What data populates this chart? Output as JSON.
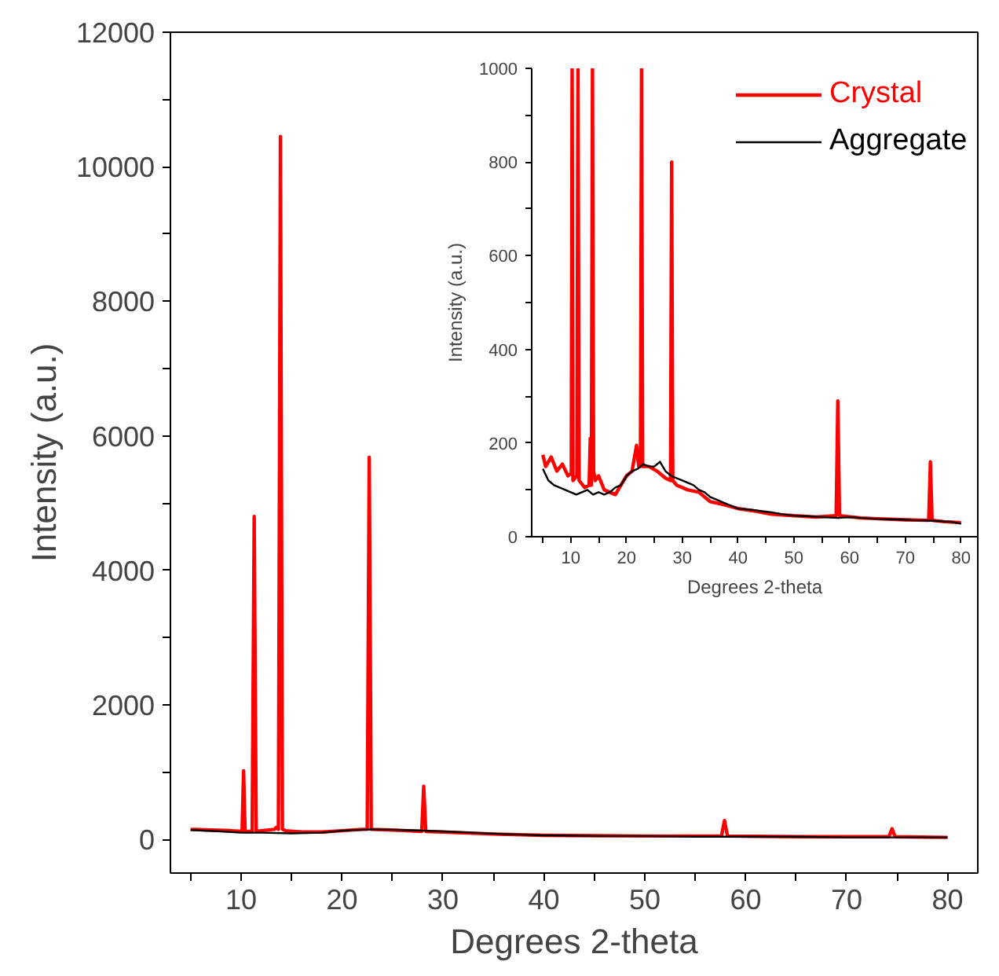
{
  "chart_data": [
    {
      "type": "line",
      "xlabel": "Degrees 2-theta",
      "ylabel": "Intensity (a.u.)",
      "xlim": [
        3,
        83
      ],
      "ylim": [
        -500,
        12000
      ],
      "xticks": [
        {
          "value": 5,
          "label": null
        },
        10,
        {
          "value": 15,
          "label": null
        },
        20,
        {
          "value": 25,
          "label": null
        },
        30,
        {
          "value": 35,
          "label": null
        },
        40,
        {
          "value": 45,
          "label": null
        },
        50,
        {
          "value": 55,
          "label": null
        },
        60,
        {
          "value": 65,
          "label": null
        },
        70,
        {
          "value": 75,
          "label": null
        },
        80
      ],
      "yticks": [
        0,
        {
          "value": 1000,
          "label": null
        },
        2000,
        {
          "value": 3000,
          "label": null
        },
        4000,
        {
          "value": 5000,
          "label": null
        },
        6000,
        {
          "value": 7000,
          "label": null
        },
        8000,
        {
          "value": 9000,
          "label": null
        },
        10000,
        {
          "value": 11000,
          "label": null
        },
        12000
      ],
      "grid": false,
      "legend": false,
      "series": [
        {
          "color": "#ff0000",
          "x": [
            5,
            7,
            9,
            10.1,
            10.25,
            10.4,
            11.1,
            11.3,
            11.5,
            13.3,
            13.5,
            13.7,
            13.9,
            14.1,
            14.4,
            16,
            18,
            20,
            22,
            22.5,
            22.7,
            22.9,
            25,
            27.9,
            28.1,
            28.3,
            30,
            35,
            40,
            50,
            57.6,
            57.9,
            58.2,
            65,
            74.2,
            74.5,
            74.8,
            80
          ],
          "values": [
            150,
            140,
            130,
            120,
            1020,
            120,
            120,
            4800,
            120,
            150,
            180,
            150,
            10450,
            150,
            130,
            110,
            110,
            130,
            150,
            150,
            5680,
            150,
            140,
            120,
            790,
            120,
            110,
            80,
            60,
            50,
            50,
            280,
            50,
            40,
            40,
            160,
            40,
            30
          ]
        },
        {
          "color": "#000000",
          "x": [
            5,
            8,
            10,
            12,
            15,
            18,
            20,
            23,
            26,
            28,
            30,
            33,
            36,
            40,
            45,
            50,
            55,
            60,
            65,
            70,
            75,
            80
          ],
          "values": [
            140,
            120,
            100,
            100,
            90,
            100,
            130,
            150,
            140,
            130,
            120,
            100,
            80,
            60,
            50,
            50,
            40,
            40,
            40,
            30,
            30,
            30
          ]
        }
      ]
    },
    {
      "type": "line",
      "xlabel": "Degrees 2-theta",
      "ylabel": "Intensity (a.u.)",
      "xlim": [
        3,
        83
      ],
      "ylim": [
        0,
        1000
      ],
      "xticks": [
        {
          "value": 5,
          "label": null
        },
        10,
        {
          "value": 15,
          "label": null
        },
        20,
        {
          "value": 25,
          "label": null
        },
        30,
        {
          "value": 35,
          "label": null
        },
        40,
        {
          "value": 45,
          "label": null
        },
        50,
        {
          "value": 55,
          "label": null
        },
        60,
        {
          "value": 65,
          "label": null
        },
        70,
        {
          "value": 75,
          "label": null
        },
        80
      ],
      "yticks": [
        0,
        {
          "value": 100,
          "label": null
        },
        200,
        {
          "value": 300,
          "label": null
        },
        400,
        {
          "value": 500,
          "label": null
        },
        600,
        {
          "value": 700,
          "label": null
        },
        800,
        {
          "value": 900,
          "label": null
        },
        1000
      ],
      "grid": false,
      "legend": "top right",
      "series": [
        {
          "name": "Crystal",
          "color": "#ff0000",
          "x": [
            5,
            5.5,
            6.5,
            7.5,
            8.5,
            9.5,
            10.1,
            10.25,
            10.4,
            11.1,
            11.3,
            11.5,
            12.5,
            13.3,
            13.5,
            13.7,
            13.9,
            14.1,
            14.4,
            15,
            16,
            17,
            18,
            19,
            20,
            21,
            21.8,
            22.2,
            22.5,
            22.7,
            22.9,
            24,
            25.5,
            27,
            27.9,
            28.1,
            28.3,
            29,
            31,
            33,
            35,
            37,
            40,
            43,
            46,
            50,
            54,
            57.6,
            57.9,
            58.2,
            62,
            66,
            70,
            74.2,
            74.5,
            74.8,
            77,
            80
          ],
          "values": [
            175,
            150,
            170,
            140,
            155,
            130,
            135,
            1000,
            120,
            130,
            1000,
            120,
            105,
            110,
            210,
            110,
            1000,
            140,
            120,
            130,
            100,
            95,
            90,
            110,
            130,
            140,
            195,
            150,
            150,
            1000,
            150,
            150,
            140,
            125,
            120,
            800,
            120,
            110,
            100,
            95,
            75,
            70,
            60,
            55,
            48,
            45,
            42,
            45,
            290,
            45,
            40,
            38,
            36,
            35,
            160,
            35,
            32,
            30
          ]
        },
        {
          "name": "Aggregate",
          "color": "#000000",
          "x": [
            5,
            6,
            7,
            8,
            9,
            10,
            11,
            12,
            13,
            14,
            15,
            16,
            17,
            18,
            19,
            20,
            21,
            22,
            23,
            24,
            25,
            26,
            27,
            28,
            29,
            30,
            31,
            32,
            33,
            34,
            35,
            36,
            38,
            40,
            42,
            44,
            46,
            48,
            50,
            52,
            55,
            58,
            60,
            62,
            65,
            68,
            70,
            72,
            75,
            78,
            80
          ],
          "values": [
            145,
            120,
            110,
            105,
            100,
            95,
            90,
            95,
            100,
            90,
            95,
            90,
            95,
            105,
            110,
            130,
            140,
            145,
            155,
            150,
            150,
            160,
            140,
            130,
            125,
            120,
            115,
            110,
            100,
            95,
            85,
            80,
            70,
            60,
            58,
            55,
            52,
            48,
            45,
            44,
            42,
            40,
            42,
            40,
            38,
            37,
            36,
            35,
            34,
            32,
            28
          ]
        }
      ]
    }
  ]
}
